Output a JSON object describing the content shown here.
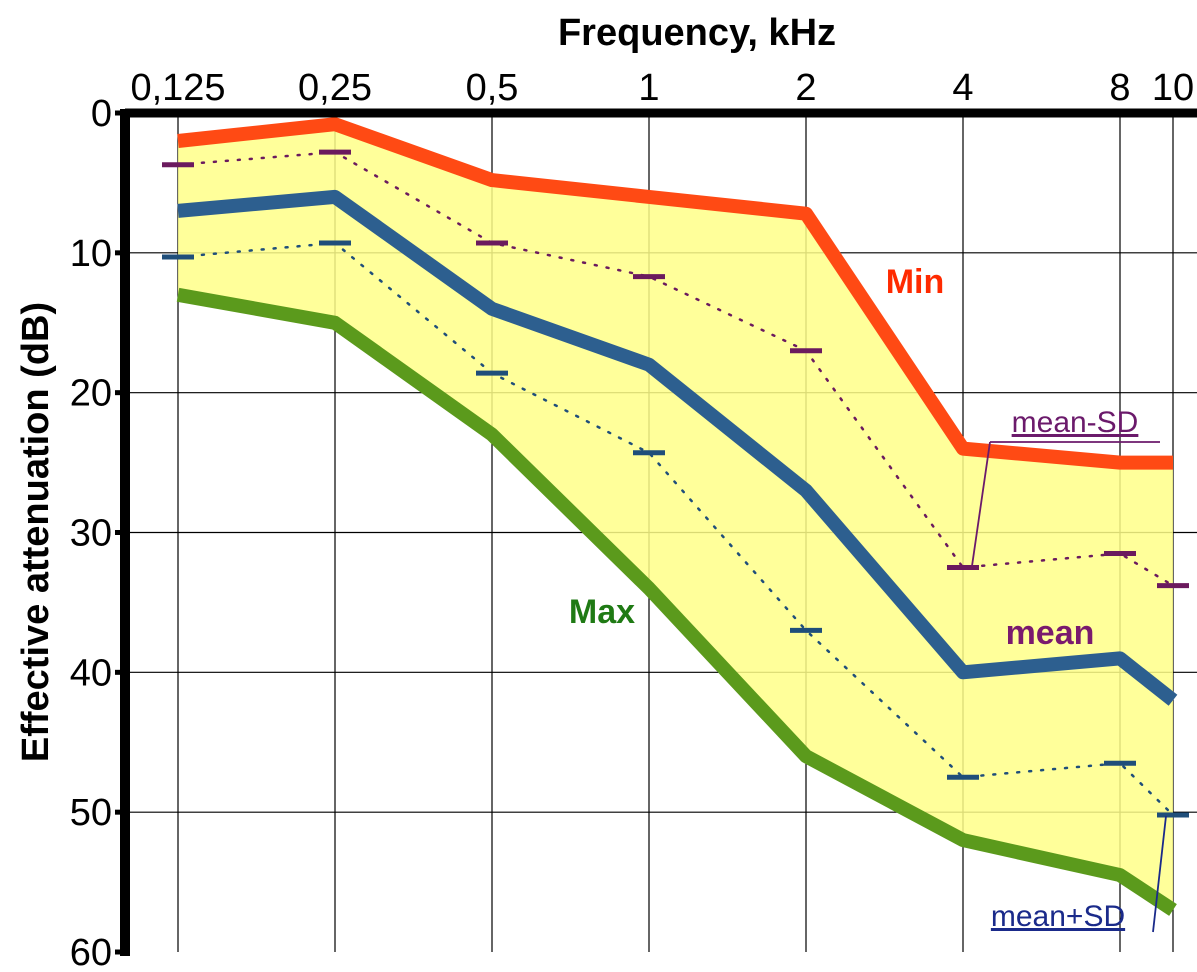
{
  "chart_data": {
    "type": "line",
    "title": "",
    "xlabel": "Frequency, kHz",
    "ylabel": "Effective attenuation (dB)",
    "x": [
      0.125,
      0.25,
      0.5,
      1,
      2,
      4,
      8,
      10
    ],
    "x_tick_labels": [
      "0,125",
      "0,25",
      "0,5",
      "1",
      "2",
      "4",
      "8",
      "10"
    ],
    "x_scale": "log",
    "x_axis_position": "top",
    "y_axis_inverted": true,
    "ylim": [
      0,
      60
    ],
    "y_ticks": [
      0,
      10,
      20,
      30,
      40,
      50,
      60
    ],
    "grid": true,
    "band_fill_color": "#ffff88",
    "series": [
      {
        "name": "Min",
        "color": "#ff4a14",
        "style": "solid",
        "values": [
          2,
          0.8,
          4.8,
          6,
          7.2,
          24,
          25,
          25
        ]
      },
      {
        "name": "mean",
        "color": "#2d5f8f",
        "style": "solid",
        "values": [
          7,
          6,
          14,
          18,
          27,
          40,
          39,
          42
        ]
      },
      {
        "name": "Max",
        "color": "#5b9a1c",
        "style": "solid",
        "values": [
          13,
          15,
          23,
          34,
          46,
          52,
          54.5,
          57
        ]
      },
      {
        "name": "mean-SD",
        "color": "#6b1a5e",
        "style": "dotted-marker",
        "values": [
          3.7,
          2.8,
          9.3,
          11.7,
          17,
          32.5,
          31.5,
          33.8
        ]
      },
      {
        "name": "mean+SD",
        "color": "#1f4e7a",
        "style": "dotted-marker",
        "values": [
          10.3,
          9.3,
          18.6,
          24.3,
          37,
          47.5,
          46.5,
          50.2
        ]
      }
    ],
    "annotations": [
      {
        "text": "Min",
        "color": "#ff2a00"
      },
      {
        "text": "Max",
        "color": "#1f7a14"
      },
      {
        "text": "mean",
        "color": "#7a1a6e"
      },
      {
        "text": "mean-SD",
        "color": "#6b1a6b"
      },
      {
        "text": "mean+SD",
        "color": "#1a2a8a"
      }
    ]
  }
}
